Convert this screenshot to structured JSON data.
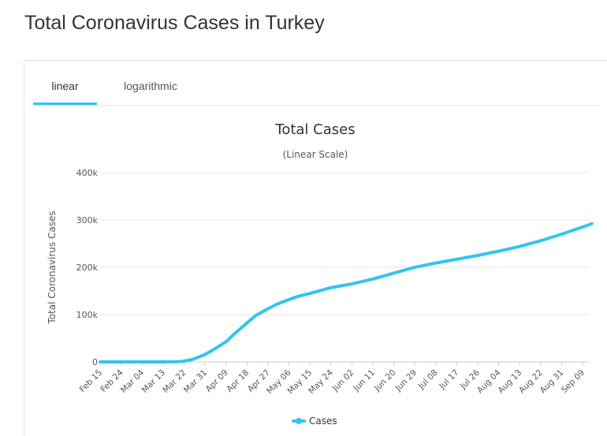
{
  "page": {
    "title": "Total Coronavirus Cases in Turkey"
  },
  "tabs": {
    "linear": "linear",
    "logarithmic": "logarithmic"
  },
  "colors": {
    "series": "#33c4ee",
    "grid": "#e6e6e6",
    "accent": "#33c4ee"
  },
  "chart_data": {
    "type": "line",
    "title": "Total Cases",
    "subtitle": "(Linear Scale)",
    "ylabel": "Total Coronavirus Cases",
    "xlabel": "",
    "ylim": [
      0,
      400000
    ],
    "y_ticks": [
      0,
      100000,
      200000,
      300000,
      400000
    ],
    "y_tick_labels": [
      "0",
      "100k",
      "200k",
      "300k",
      "400k"
    ],
    "x_tick_labels": [
      "Feb 15",
      "Feb 24",
      "Mar 04",
      "Mar 13",
      "Mar 22",
      "Mar 31",
      "Apr 09",
      "Apr 18",
      "Apr 27",
      "May 06",
      "May 15",
      "May 24",
      "Jun 02",
      "Jun 11",
      "Jun 20",
      "Jun 29",
      "Jul 08",
      "Jul 17",
      "Jul 26",
      "Aug 04",
      "Aug 13",
      "Aug 22",
      "Aug 31",
      "Sep 09"
    ],
    "grid": true,
    "legend": "bottom",
    "series": [
      {
        "name": "Cases",
        "x": [
          "Feb 15",
          "Feb 24",
          "Mar 04",
          "Mar 13",
          "Mar 18",
          "Mar 22",
          "Mar 26",
          "Mar 31",
          "Apr 04",
          "Apr 09",
          "Apr 13",
          "Apr 18",
          "Apr 22",
          "Apr 27",
          "May 01",
          "May 06",
          "May 10",
          "May 15",
          "May 24",
          "Jun 02",
          "Jun 11",
          "Jun 20",
          "Jun 29",
          "Jul 08",
          "Jul 17",
          "Jul 26",
          "Aug 04",
          "Aug 13",
          "Aug 22",
          "Aug 31",
          "Sep 09",
          "Sep 13"
        ],
        "values": [
          0,
          0,
          0,
          5,
          200,
          1500,
          5700,
          15700,
          27000,
          42300,
          61000,
          82300,
          99000,
          112300,
          122400,
          131700,
          138700,
          144700,
          156800,
          164800,
          175200,
          187700,
          199900,
          209000,
          216900,
          225000,
          234000,
          244000,
          256000,
          270000,
          285000,
          292000
        ]
      }
    ]
  }
}
